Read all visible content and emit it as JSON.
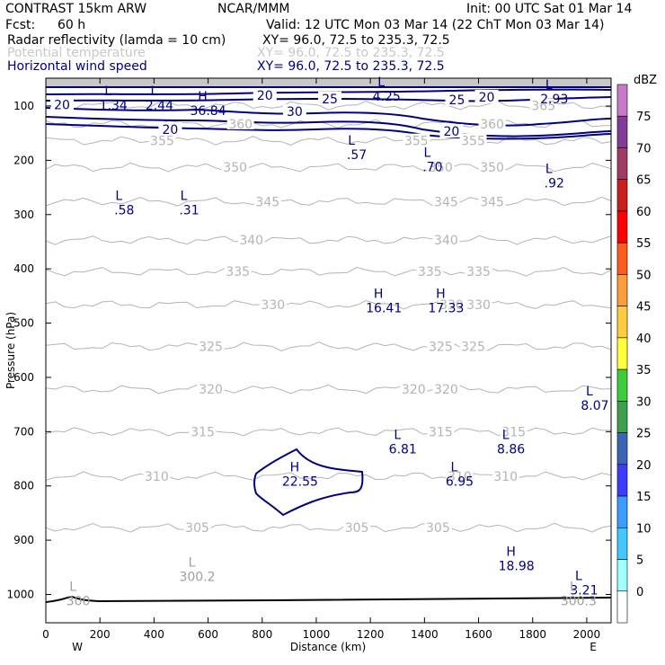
{
  "header": {
    "model": "CONTRAST 15km ARW",
    "org": "NCAR/MMM",
    "init": "Init: 00 UTC Sat 01 Mar 14",
    "fcst_label": "Fcst:",
    "fcst_value": "60 h",
    "valid": "Valid: 12 UTC Mon 03 Mar 14 (22 ChT Mon 03 Mar 14)",
    "fields": [
      {
        "name": "Radar reflectivity (lamda = 10 cm)",
        "xy": "XY=  96.0, 72.5 to 235.3, 72.5",
        "color": "#000000"
      },
      {
        "name": "Potential temperature",
        "xy": "XY=  96.0, 72.5 to 235.3, 72.5",
        "color": "#c8c8c8"
      },
      {
        "name": "Horizontal wind speed",
        "xy": "XY=  96.0, 72.5 to 235.3, 72.5",
        "color": "#000080"
      }
    ]
  },
  "chart_data": {
    "type": "contour_cross_section",
    "xlabel": "Distance (km)",
    "ylabel": "Pressure (hPa)",
    "xlim": [
      0,
      2090
    ],
    "x_ticks": [
      0,
      200,
      400,
      600,
      800,
      1000,
      1200,
      1400,
      1600,
      1800,
      2000
    ],
    "ylim": [
      1050,
      50
    ],
    "y_ticks": [
      100,
      200,
      300,
      400,
      500,
      600,
      700,
      800,
      900,
      1000
    ],
    "x_end_labels": {
      "left": "W",
      "right": "E"
    },
    "theta_contours": [
      {
        "level": 305,
        "p": 877,
        "label": "305",
        "label_x": [
          560,
          1150,
          1450
        ]
      },
      {
        "level": 310,
        "p": 782,
        "label": "310",
        "label_x": [
          410,
          1530,
          1700
        ]
      },
      {
        "level": 315,
        "p": 700,
        "label": "315",
        "label_x": [
          580,
          1460,
          1730
        ]
      },
      {
        "level": 320,
        "p": 622,
        "label": "320",
        "label_x": [
          610,
          1360,
          1480
        ]
      },
      {
        "level": 325,
        "p": 543,
        "label": "325",
        "label_x": [
          610,
          1460,
          1580
        ]
      },
      {
        "level": 330,
        "p": 466,
        "label": "330",
        "label_x": [
          840,
          1500,
          1600
        ]
      },
      {
        "level": 335,
        "p": 405,
        "label": "335",
        "label_x": [
          710,
          1420,
          1600
        ]
      },
      {
        "level": 340,
        "p": 347,
        "label": "340",
        "label_x": [
          760,
          1480
        ]
      },
      {
        "level": 345,
        "p": 276,
        "label": "345",
        "label_x": [
          820,
          1480,
          1650
        ]
      },
      {
        "level": 350,
        "p": 213,
        "label": "350",
        "label_x": [
          700,
          1460,
          1650
        ]
      },
      {
        "level": 355,
        "p": 164,
        "label": "355",
        "label_x": [
          430,
          1370,
          1580
        ]
      },
      {
        "level": 360,
        "p": 133,
        "label": "360",
        "label_x": [
          720,
          1650
        ]
      },
      {
        "level": 365,
        "p": 99,
        "label": "365",
        "label_x": [
          1840
        ]
      }
    ],
    "wind_contours": [
      {
        "level": 20,
        "labels": [
          {
            "text": "20",
            "x": 60,
            "p": 99
          },
          {
            "text": "20",
            "x": 810,
            "p": 82
          },
          {
            "text": "20",
            "x": 1630,
            "p": 85
          },
          {
            "text": "20",
            "x": 460,
            "p": 145
          },
          {
            "text": "20",
            "x": 1500,
            "p": 148
          }
        ]
      },
      {
        "level": 25,
        "labels": [
          {
            "text": "25",
            "x": 1050,
            "p": 88
          },
          {
            "text": "25",
            "x": 1520,
            "p": 90
          }
        ]
      },
      {
        "level": 30,
        "labels": [
          {
            "text": "30",
            "x": 920,
            "p": 112
          }
        ]
      }
    ],
    "extrema_wind": [
      {
        "type": "L",
        "value": "1.34",
        "x": 250,
        "p": 97
      },
      {
        "type": "L",
        "value": "2.44",
        "x": 420,
        "p": 97
      },
      {
        "type": "H",
        "value": "36.84",
        "x": 600,
        "p": 107
      },
      {
        "type": "L",
        "value": "4.25",
        "x": 1260,
        "p": 80
      },
      {
        "type": "L",
        "value": "2.93",
        "x": 1880,
        "p": 85
      },
      {
        "type": "L",
        "value": ".57",
        "x": 1150,
        "p": 188
      },
      {
        "type": "L",
        "value": ".70",
        "x": 1430,
        "p": 210
      },
      {
        "type": "L",
        "value": ".92",
        "x": 1880,
        "p": 240
      },
      {
        "type": "L",
        "value": ".58",
        "x": 290,
        "p": 290
      },
      {
        "type": "L",
        "value": ".31",
        "x": 530,
        "p": 290
      },
      {
        "type": "H",
        "value": "16.41",
        "x": 1250,
        "p": 470
      },
      {
        "type": "H",
        "value": "17.33",
        "x": 1480,
        "p": 470
      },
      {
        "type": "L",
        "value": "8.07",
        "x": 2030,
        "p": 650
      },
      {
        "type": "L",
        "value": "6.81",
        "x": 1320,
        "p": 730
      },
      {
        "type": "L",
        "value": "8.86",
        "x": 1720,
        "p": 730
      },
      {
        "type": "H",
        "value": "22.55",
        "x": 940,
        "p": 790
      },
      {
        "type": "L",
        "value": "6.95",
        "x": 1530,
        "p": 790
      },
      {
        "type": "H",
        "value": "18.98",
        "x": 1740,
        "p": 945
      },
      {
        "type": "L",
        "value": "3.21",
        "x": 1990,
        "p": 990
      }
    ],
    "extrema_theta": [
      {
        "type": "L",
        "value": "300.2",
        "x": 560,
        "p": 965
      },
      {
        "type": "L",
        "value": "300",
        "x": 120,
        "p": 1010
      },
      {
        "type": "L",
        "value": "300.3",
        "x": 1970,
        "p": 1010
      }
    ],
    "colorbar": {
      "unit": "dBZ",
      "levels": [
        "0",
        "5",
        "10",
        "15",
        "20",
        "25",
        "30",
        "35",
        "40",
        "45",
        "50",
        "55",
        "60",
        "65",
        "70",
        "75"
      ],
      "colors": [
        "#ffffff",
        "#a0ffff",
        "#40c8ff",
        "#3a9cff",
        "#3c3cff",
        "#3c64b4",
        "#3ca050",
        "#3ccc3c",
        "#ffff3c",
        "#ffcc3c",
        "#ff9c3c",
        "#ff5a1e",
        "#ff0000",
        "#c81e1e",
        "#a03c64",
        "#823c96",
        "#c87ac8"
      ]
    }
  }
}
